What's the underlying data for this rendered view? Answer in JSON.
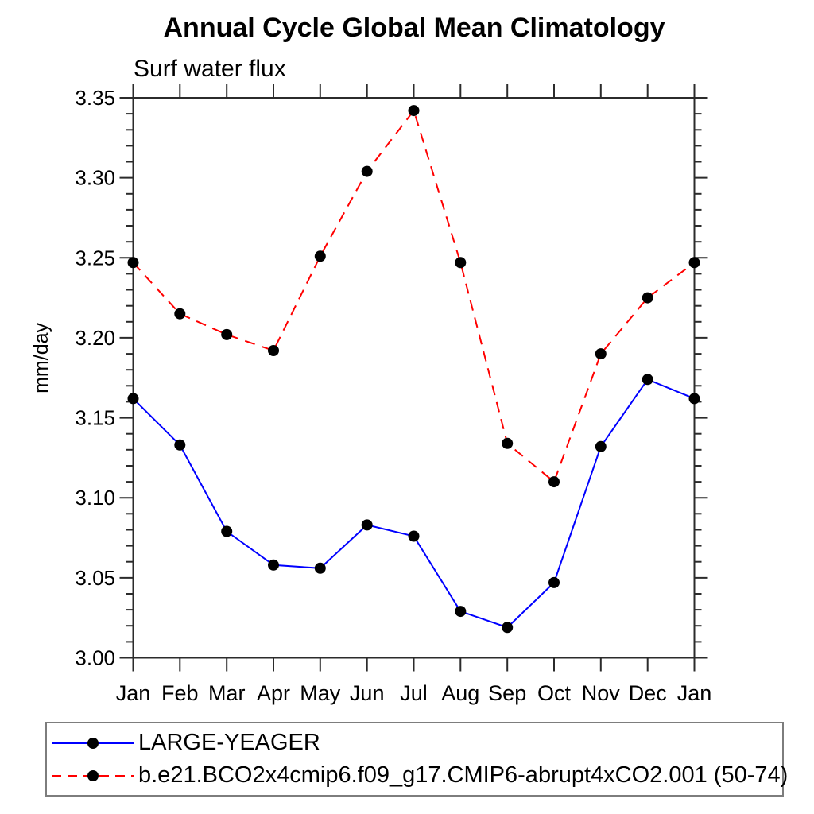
{
  "chart_data": {
    "type": "line",
    "title": "Annual Cycle Global Mean Climatology",
    "subtitle": "Surf water flux",
    "ylabel": "mm/day",
    "xlabel": "",
    "x_categories": [
      "Jan",
      "Feb",
      "Mar",
      "Apr",
      "May",
      "Jun",
      "Jul",
      "Aug",
      "Sep",
      "Oct",
      "Nov",
      "Dec",
      "Jan"
    ],
    "ylim": [
      3.0,
      3.35
    ],
    "ytick_step": 0.05,
    "yminor_step": 0.01,
    "ytick_labels": [
      "3.00",
      "3.05",
      "3.10",
      "3.15",
      "3.20",
      "3.25",
      "3.30",
      "3.35"
    ],
    "grid": "off",
    "legend_position": "bottom-left-box",
    "axis_color": "#2b2b2b",
    "marker_color": "#000000",
    "series": [
      {
        "name": "LARGE-YEAGER",
        "color": "#0000ff",
        "line_style": "solid",
        "marker": "filled-circle",
        "values": [
          3.162,
          3.133,
          3.079,
          3.058,
          3.056,
          3.083,
          3.076,
          3.029,
          3.019,
          3.047,
          3.132,
          3.174,
          3.162
        ]
      },
      {
        "name": "b.e21.BCO2x4cmip6.f09_g17.CMIP6-abrupt4xCO2.001 (50-74)",
        "color": "#ff0000",
        "line_style": "dashed",
        "marker": "filled-circle",
        "values": [
          3.247,
          3.215,
          3.202,
          3.192,
          3.251,
          3.304,
          3.342,
          3.247,
          3.134,
          3.11,
          3.19,
          3.225,
          3.247
        ]
      }
    ]
  }
}
